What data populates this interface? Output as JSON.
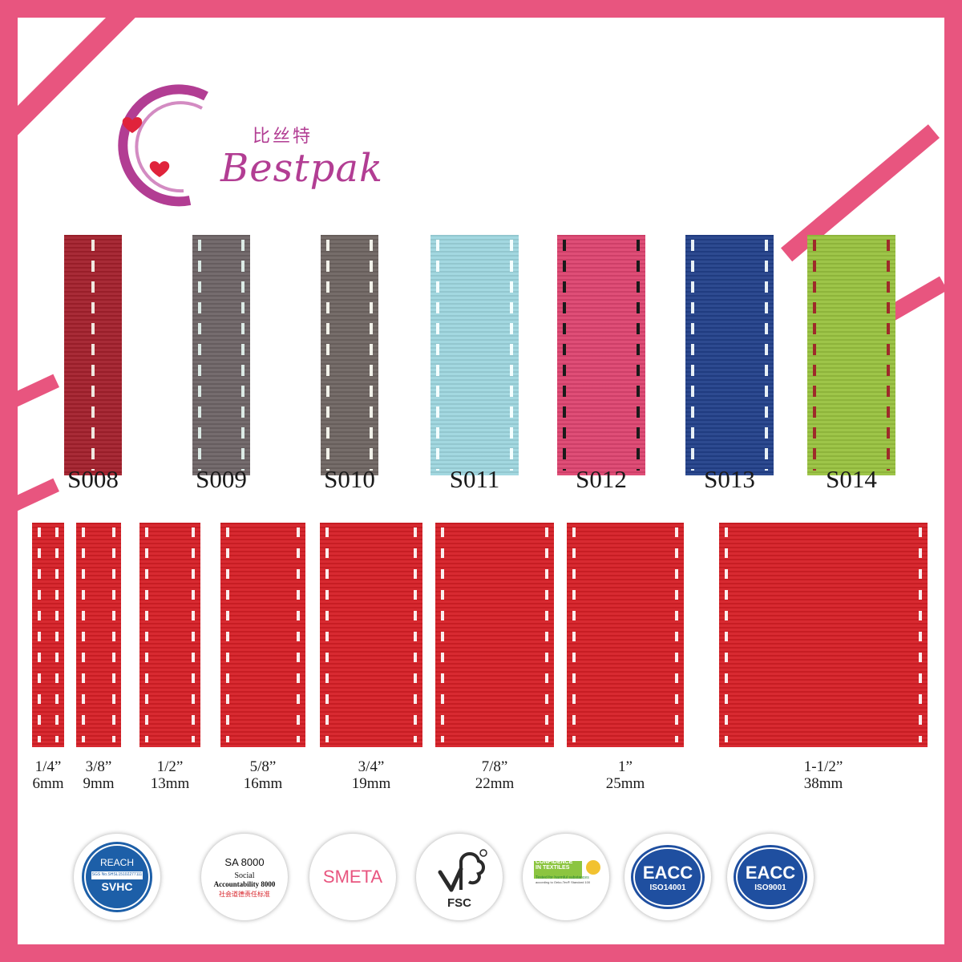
{
  "brand": {
    "name_zh": "比丝特",
    "name_en": "Bestpak",
    "color": "#b23d93"
  },
  "colors": {
    "frame": "#e8557f",
    "background": "#ffffff"
  },
  "swatches": [
    {
      "code": "S008",
      "ribbon_color": "#a3202c",
      "stitch_color": "#f0e8e0",
      "stitch_position": "center"
    },
    {
      "code": "S009",
      "ribbon_color": "#6e6466",
      "stitch_color": "#dcebe6",
      "stitch_position": "edges"
    },
    {
      "code": "S010",
      "ribbon_color": "#6f6562",
      "stitch_color": "#f2f2ea",
      "stitch_position": "edges"
    },
    {
      "code": "S011",
      "ribbon_color": "#9ed6df",
      "stitch_color": "#f4ffff",
      "stitch_position": "edges"
    },
    {
      "code": "S012",
      "ribbon_color": "#dd4470",
      "stitch_color": "#1a1a1a",
      "stitch_position": "edges"
    },
    {
      "code": "S013",
      "ribbon_color": "#22408a",
      "stitch_color": "#e8f0f6",
      "stitch_position": "edges"
    },
    {
      "code": "S014",
      "ribbon_color": "#99c23f",
      "stitch_color": "#9e2a2a",
      "stitch_position": "edges"
    }
  ],
  "sizes": [
    {
      "inch": "1/4”",
      "mm": "6mm"
    },
    {
      "inch": "3/8”",
      "mm": "9mm"
    },
    {
      "inch": "1/2”",
      "mm": "13mm"
    },
    {
      "inch": "5/8”",
      "mm": "16mm"
    },
    {
      "inch": "3/4”",
      "mm": "19mm"
    },
    {
      "inch": "7/8”",
      "mm": "22mm"
    },
    {
      "inch": "1”",
      "mm": "25mm"
    },
    {
      "inch": "1-1/2”",
      "mm": "38mm"
    }
  ],
  "size_ribbon": {
    "ribbon_color": "#d61f26",
    "stitch_color": "#fbeeee"
  },
  "certifications": [
    {
      "name": "reach-svhc",
      "line1": "REACH",
      "line2": "SGS No.SHSL15102277111",
      "line3": "SVHC"
    },
    {
      "name": "sa8000",
      "line1": "SA 8000",
      "line2": "Social",
      "line3": "Accountability 8000",
      "line4": "社会道德责任标准"
    },
    {
      "name": "smeta",
      "line1": "SMETA"
    },
    {
      "name": "fsc",
      "line1": "FSC"
    },
    {
      "name": "oeko-tex",
      "line1": "CONFIDENCE",
      "line2": "IN TEXTILES",
      "line3": "Tested for harmful substances",
      "line4": "according to Oeko-Tex® Standard 100"
    },
    {
      "name": "eacc-iso14001",
      "line1": "EACC",
      "line2": "ISO14001"
    },
    {
      "name": "eacc-iso9001",
      "line1": "EACC",
      "line2": "ISO9001"
    }
  ]
}
